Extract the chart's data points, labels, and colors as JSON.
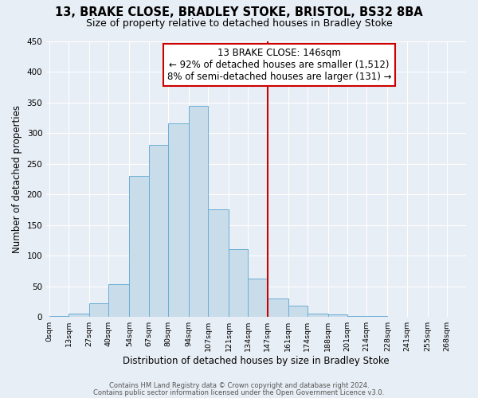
{
  "title": "13, BRAKE CLOSE, BRADLEY STOKE, BRISTOL, BS32 8BA",
  "subtitle": "Size of property relative to detached houses in Bradley Stoke",
  "xlabel": "Distribution of detached houses by size in Bradley Stoke",
  "ylabel": "Number of detached properties",
  "bin_labels": [
    "0sqm",
    "13sqm",
    "27sqm",
    "40sqm",
    "54sqm",
    "67sqm",
    "80sqm",
    "94sqm",
    "107sqm",
    "121sqm",
    "134sqm",
    "147sqm",
    "161sqm",
    "174sqm",
    "188sqm",
    "201sqm",
    "214sqm",
    "228sqm",
    "241sqm",
    "255sqm",
    "268sqm"
  ],
  "bar_heights": [
    2,
    6,
    22,
    54,
    230,
    280,
    316,
    344,
    176,
    110,
    63,
    30,
    18,
    6,
    4,
    2,
    1,
    0,
    0,
    0
  ],
  "bin_edges": [
    0,
    13,
    27,
    40,
    54,
    67,
    80,
    94,
    107,
    121,
    134,
    147,
    161,
    174,
    188,
    201,
    214,
    228,
    241,
    255,
    268
  ],
  "bar_color": "#c9dcea",
  "bar_edge_color": "#6aaed6",
  "vline_x": 147,
  "vline_color": "#cc0000",
  "annotation_title": "13 BRAKE CLOSE: 146sqm",
  "annotation_line1": "← 92% of detached houses are smaller (1,512)",
  "annotation_line2": "8% of semi-detached houses are larger (131) →",
  "annotation_box_color": "#cc0000",
  "annotation_bg": "#ffffff",
  "ylim": [
    0,
    450
  ],
  "yticks": [
    0,
    50,
    100,
    150,
    200,
    250,
    300,
    350,
    400,
    450
  ],
  "footer1": "Contains HM Land Registry data © Crown copyright and database right 2024.",
  "footer2": "Contains public sector information licensed under the Open Government Licence v3.0.",
  "bg_color": "#e8eef5",
  "grid_color": "#ffffff",
  "title_fontsize": 10.5,
  "subtitle_fontsize": 9,
  "annotation_fontsize": 8.5,
  "ylabel_fontsize": 8.5,
  "xlabel_fontsize": 8.5
}
